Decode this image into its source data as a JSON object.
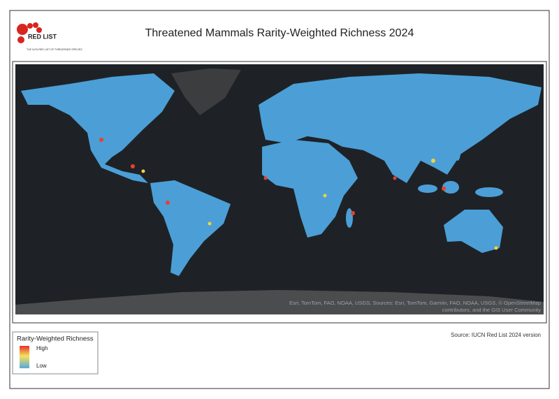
{
  "header": {
    "logo_text": "RED LIST",
    "logo_subtext": "THE IUCN RED LIST OF THREATENED SPECIES",
    "title": "Threatened Mammals Rarity-Weighted Richness 2024"
  },
  "map": {
    "attribution": [
      "Esri, TomTom, FAO, NOAA, USGS, Sources: Esri, TomTom, Garmin, FAO, NOAA, USGS, © OpenStreetMap",
      "contributors, and the GIS User Community"
    ]
  },
  "legend": {
    "title": "Rarity-Weighted Richness",
    "high": "High",
    "low": "Low"
  },
  "source": "Source: IUCN Red List 2024 version"
}
